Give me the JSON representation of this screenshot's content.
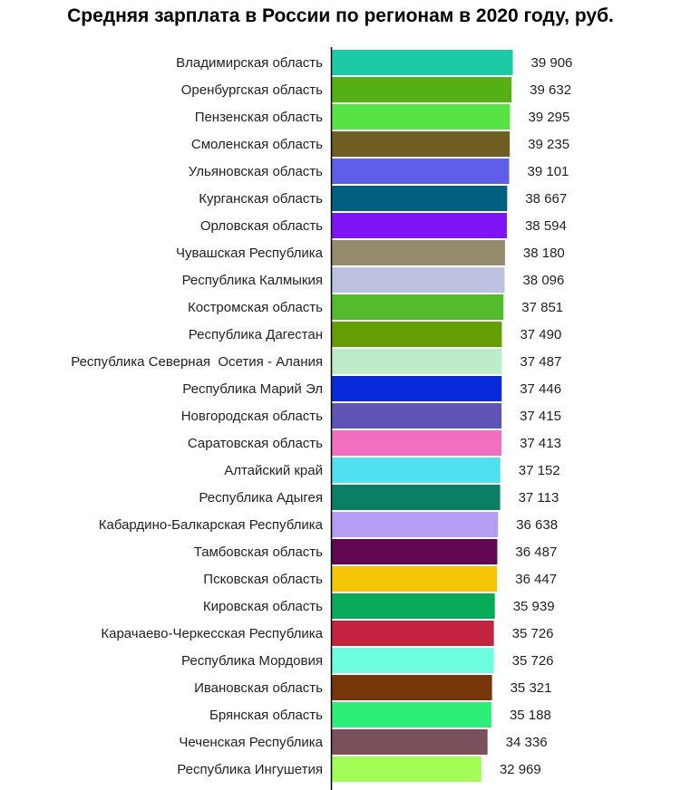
{
  "chart_data": {
    "type": "bar",
    "orientation": "horizontal",
    "title": "Средняя зарплата в России по регионам в 2020 году, руб.",
    "xlabel": "",
    "ylabel": "",
    "grid": false,
    "legend": "none",
    "categories": [
      "Владимирская область",
      "Оренбургская область",
      "Пензенская область",
      "Смоленская область",
      "Ульяновская область",
      "Курганская область",
      "Орловская область",
      "Чувашская Республика",
      "Республика Калмыкия",
      "Костромская область",
      "Республика Дагестан",
      "Республика Северная  Осетия - Алания",
      "Республика Марий Эл",
      "Новгородская область",
      "Саратовская область",
      "Алтайский край",
      "Республика Адыгея",
      "Кабардино-Балкарская Республика",
      "Тамбовская область",
      "Псковская область",
      "Кировская область",
      "Карачаево-Черкесская Республика",
      "Республика Мордовия",
      "Ивановская область",
      "Брянская область",
      "Чеченская Республика",
      "Республика Ингушетия"
    ],
    "values": [
      39906,
      39632,
      39295,
      39235,
      39101,
      38667,
      38594,
      38180,
      38096,
      37851,
      37490,
      37487,
      37446,
      37415,
      37413,
      37152,
      37113,
      36638,
      36487,
      36447,
      35939,
      35726,
      35726,
      35321,
      35188,
      34336,
      32969
    ],
    "value_labels": [
      "39 906",
      "39 632",
      "39 295",
      "39 235",
      "39 101",
      "38 667",
      "38 594",
      "38 180",
      "38 096",
      "37 851",
      "37 490",
      "37 487",
      "37 446",
      "37 415",
      "37 413",
      "37 152",
      "37 113",
      "36 638",
      "36 487",
      "36 447",
      "35 939",
      "35 726",
      "35 726",
      "35 321",
      "35 188",
      "34 336",
      "32 969"
    ],
    "colors": [
      "#1ccaa8",
      "#55b015",
      "#57e343",
      "#6e5e21",
      "#5e5ee9",
      "#015f7f",
      "#7e14f5",
      "#948a6c",
      "#bcc1e0",
      "#53bb2d",
      "#669c04",
      "#bdecca",
      "#062ad9",
      "#5f55b8",
      "#f06fc0",
      "#4fe1f0",
      "#0a7f64",
      "#b39ef4",
      "#620753",
      "#f4c605",
      "#08ab58",
      "#c3233e",
      "#6dfee0",
      "#753609",
      "#2cee79",
      "#7a515a",
      "#a1fd55"
    ],
    "xlim": [
      0,
      40000
    ]
  }
}
